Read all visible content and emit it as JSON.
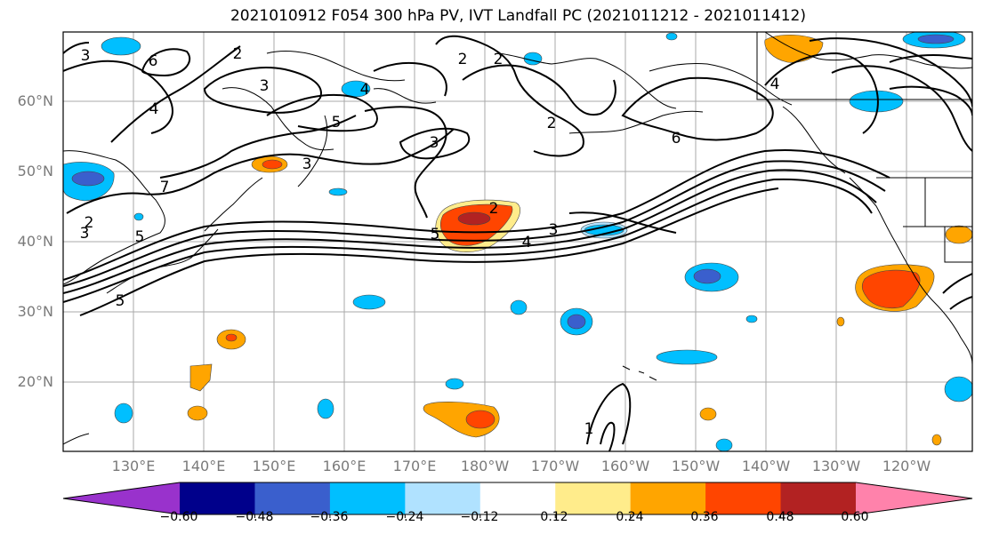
{
  "title": "2021010912 F054 300 hPa PV, IVT Landfall PC (2021011212 - 2021011412)",
  "lat_labels": [
    "60°N",
    "50°N",
    "40°N",
    "30°N",
    "20°N"
  ],
  "lon_labels": [
    "130°E",
    "140°E",
    "150°E",
    "160°E",
    "170°E",
    "180°W",
    "170°W",
    "160°W",
    "150°W",
    "140°W",
    "130°W",
    "120°W"
  ],
  "contour_labels": [
    "3",
    "6",
    "2",
    "3",
    "4",
    "5",
    "4",
    "2",
    "2",
    "3",
    "6",
    "4",
    "3",
    "5",
    "2",
    "3",
    "5",
    "4",
    "5",
    "3",
    "2",
    "7",
    "1",
    "2"
  ],
  "colorbar": {
    "tick_labels": [
      "−0.60",
      "−0.48",
      "−0.36",
      "−0.24",
      "−0.12",
      "0.12",
      "0.24",
      "0.36",
      "0.48",
      "0.60"
    ],
    "colors": [
      "#9932cc",
      "#00008b",
      "#3a5fcd",
      "#00bfff",
      "#b0e2ff",
      "#ffffff",
      "#ffec8b",
      "#ffa500",
      "#ff4500",
      "#b22222",
      "#ff82ab"
    ]
  }
}
